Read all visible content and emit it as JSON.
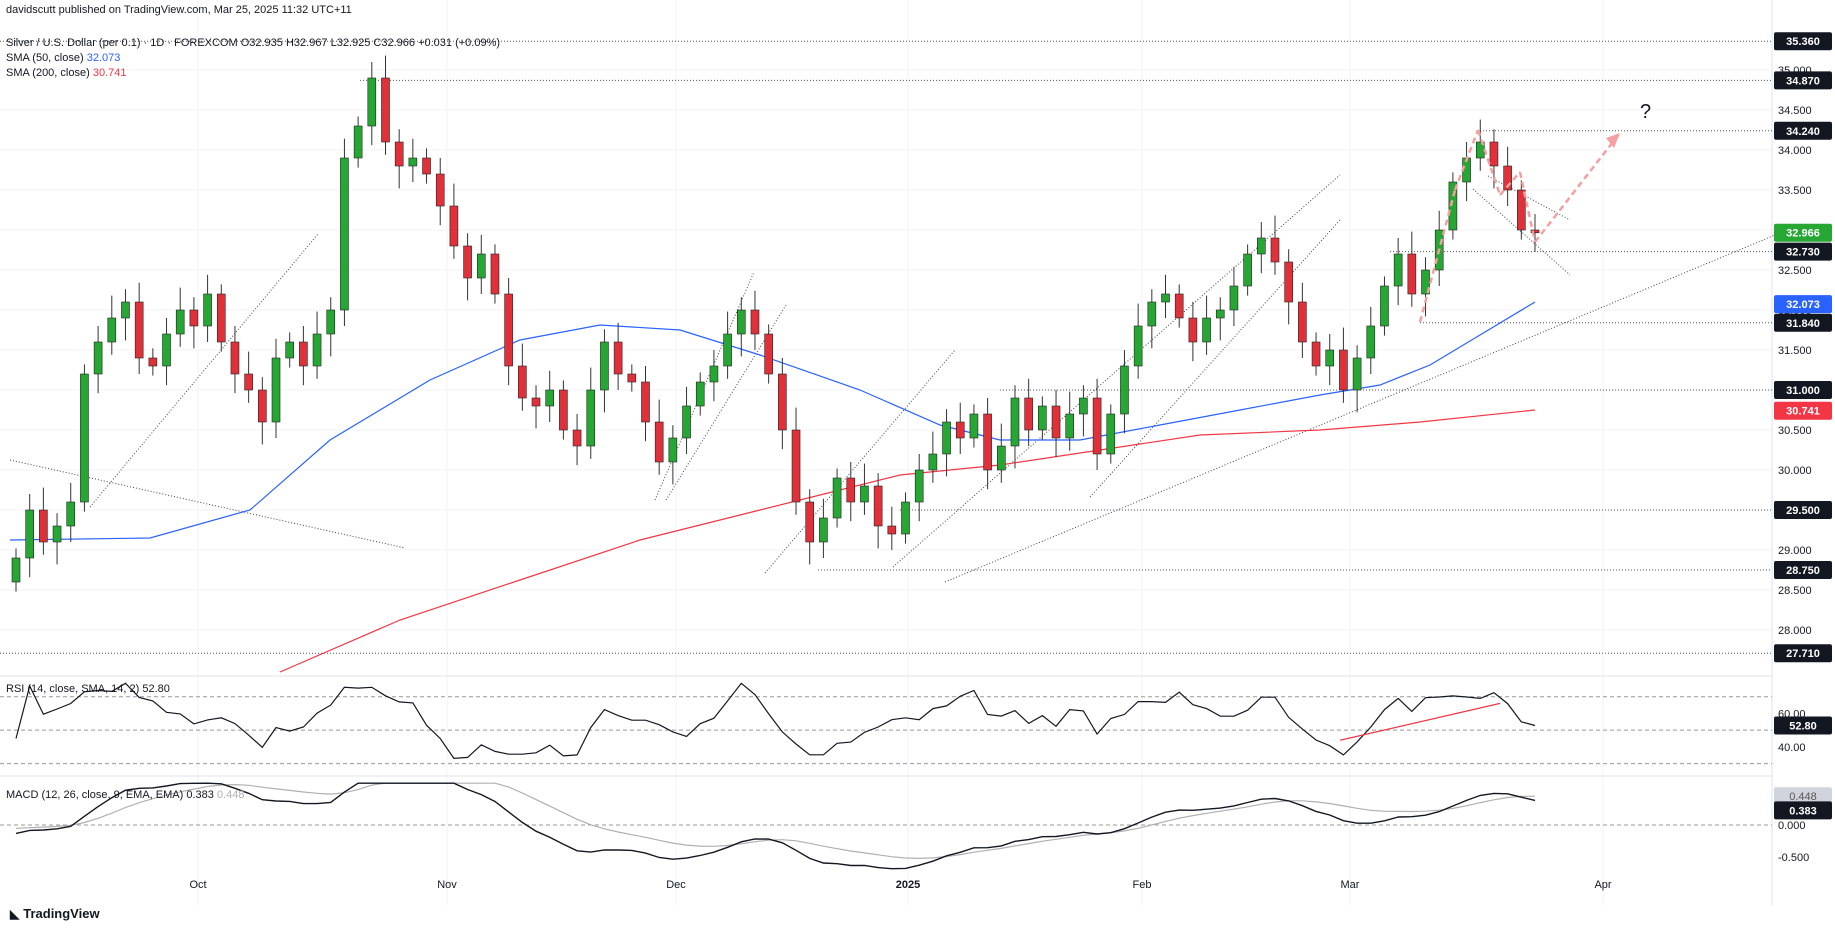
{
  "header": {
    "publisher": "davidscutt published on TradingView.com, Mar 25, 2025 11:32 UTC+11",
    "symbol_line": "Silver / U.S. Dollar (per 0.1) · 1D · FOREXCOM  O32.935  H32.967  L32.925  C32.966  +0.031 (+0.09%)",
    "sma50_label": "SMA (50, close)",
    "sma50_value": "32.073",
    "sma200_label": "SMA (200, close)",
    "sma200_value": "30.741"
  },
  "colors": {
    "up": "#26a633",
    "down": "#e0303a",
    "sma50": "#2962ff",
    "sma200": "#f23645",
    "line": "#131722",
    "signal": "#b0b0b0",
    "annotation": "#f5a0a0",
    "grid": "#f0f3fa"
  },
  "chart_data": {
    "type": "candlestick",
    "symbol": "XAGUSD",
    "timeframe": "1D",
    "x_labels": [
      "Oct",
      "Nov",
      "Dec",
      "2025",
      "Feb",
      "Mar",
      "Apr"
    ],
    "y_ticks": [
      "35.000",
      "34.500",
      "34.000",
      "33.500",
      "33.000",
      "32.500",
      "32.000",
      "31.500",
      "31.000",
      "30.500",
      "30.000",
      "29.500",
      "29.000",
      "28.500",
      "28.000"
    ],
    "ylim": [
      27.5,
      35.5
    ],
    "close_path": [
      28.9,
      29.5,
      29.1,
      29.3,
      29.6,
      31.2,
      31.6,
      31.9,
      32.1,
      31.4,
      31.3,
      31.7,
      32.0,
      31.8,
      32.2,
      31.6,
      31.2,
      31.0,
      30.6,
      31.4,
      31.6,
      31.3,
      31.7,
      32.0,
      33.9,
      34.3,
      34.9,
      34.1,
      33.8,
      33.9,
      33.7,
      33.3,
      32.8,
      32.4,
      32.7,
      32.2,
      31.3,
      30.9,
      30.8,
      31.0,
      30.5,
      30.3,
      31.0,
      31.6,
      31.2,
      31.1,
      30.6,
      30.1,
      30.4,
      30.8,
      31.1,
      31.3,
      31.7,
      32.0,
      31.7,
      31.2,
      30.5,
      29.6,
      29.1,
      29.4,
      29.9,
      29.6,
      29.8,
      29.3,
      29.2,
      29.6,
      30.0,
      30.2,
      30.6,
      30.4,
      30.7,
      30.0,
      30.3,
      30.9,
      30.5,
      30.8,
      30.4,
      30.7,
      30.9,
      30.2,
      30.7,
      31.3,
      31.8,
      32.1,
      32.2,
      31.9,
      31.6,
      31.9,
      32.0,
      32.3,
      32.7,
      32.9,
      32.6,
      32.1,
      31.6,
      31.3,
      31.5,
      31.0,
      31.4,
      31.8,
      32.3,
      32.7,
      32.2,
      32.5,
      33.0,
      33.6,
      33.9,
      34.1,
      33.8,
      33.5,
      33.0,
      32.966
    ],
    "sma50_value": 32.073,
    "sma200_value": 30.741,
    "price_levels": [
      35.36,
      34.87,
      34.24,
      32.73,
      31.84,
      31.0,
      29.5,
      28.75,
      27.71
    ],
    "price_labels": [
      "35.360",
      "34.870",
      "34.240",
      "32.966",
      "32.730",
      "32.073",
      "31.840",
      "31.000",
      "30.741",
      "29.500",
      "28.750",
      "27.710"
    ],
    "annotation": "?",
    "rsi": {
      "label": "RSI (14, close, SMA, 14, 2)",
      "value": 52.8,
      "value_label": "52.80",
      "ticks": [
        "60.00",
        "40.00"
      ],
      "ylim": [
        25,
        80
      ]
    },
    "macd": {
      "label": "MACD (12, 26, close, 9, EMA, EMA)",
      "macd_value": 0.383,
      "signal_value": 0.448,
      "value_label": "0.383",
      "signal_label": "0.448",
      "ticks": [
        "0.000",
        "-0.500"
      ],
      "ylim": [
        -0.7,
        0.7
      ]
    }
  },
  "branding": "TradingView"
}
